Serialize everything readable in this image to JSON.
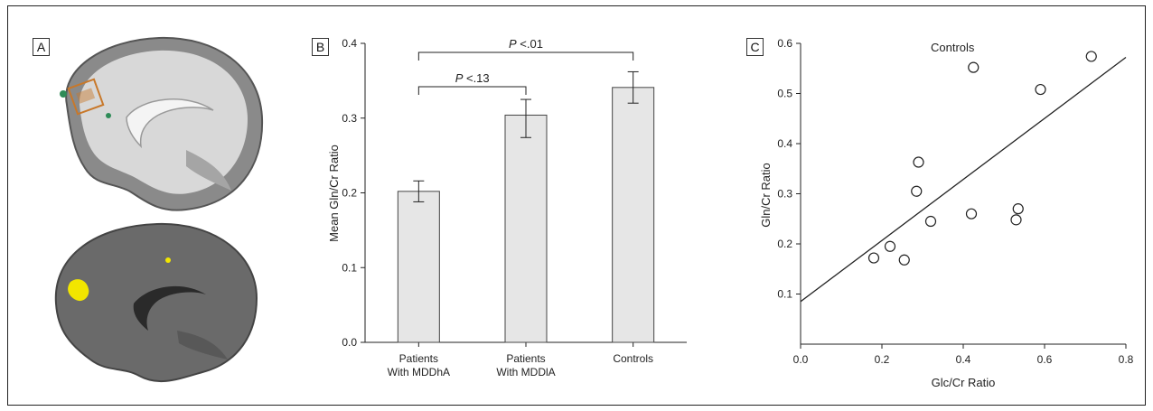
{
  "panels": {
    "a_label": "A",
    "b_label": "B",
    "c_label": "C"
  },
  "colors": {
    "bar_fill": "#e6e6e6",
    "brain_gray": "#6a6a6a",
    "brain_light": "#d8d8d8",
    "roi_orange": "#c8782a",
    "roi_green": "#2e8b57",
    "activation_yellow": "#f2e600"
  },
  "chart_data": [
    {
      "type": "bar",
      "panel": "B",
      "categories": [
        "Patients With MDDhA",
        "Patients With MDDlA",
        "Controls"
      ],
      "category_lines": [
        [
          "Patients",
          "With MDDhA"
        ],
        [
          "Patients",
          "With MDDlA"
        ],
        [
          "Controls"
        ]
      ],
      "values": [
        0.202,
        0.304,
        0.341
      ],
      "errors": [
        {
          "low": 0.188,
          "high": 0.216
        },
        {
          "low": 0.274,
          "high": 0.325
        },
        {
          "low": 0.32,
          "high": 0.362
        }
      ],
      "ylabel": "Mean Gln/Cr Ratio",
      "ylim": [
        0,
        0.4
      ],
      "yticks": [
        "0.0",
        "0.1",
        "0.2",
        "0.3",
        "0.4"
      ],
      "comparisons": [
        {
          "label_p": "P",
          "label_rest": " <.13",
          "from": 0,
          "to": 1
        },
        {
          "label_p": "P",
          "label_rest": " <.01",
          "from": 0,
          "to": 2
        }
      ]
    },
    {
      "type": "scatter",
      "panel": "C",
      "title": "Controls",
      "xlabel": "Glc/Cr Ratio",
      "ylabel": "Gln/Cr Ratio",
      "xlim": [
        0,
        0.8
      ],
      "ylim": [
        0,
        0.6
      ],
      "xticks": [
        "0.0",
        "0.2",
        "0.4",
        "0.6",
        "0.8"
      ],
      "yticks": [
        "0.1",
        "0.2",
        "0.3",
        "0.4",
        "0.5",
        "0.6"
      ],
      "points": [
        {
          "x": 0.18,
          "y": 0.172
        },
        {
          "x": 0.22,
          "y": 0.195
        },
        {
          "x": 0.255,
          "y": 0.168
        },
        {
          "x": 0.285,
          "y": 0.305
        },
        {
          "x": 0.29,
          "y": 0.363
        },
        {
          "x": 0.32,
          "y": 0.245
        },
        {
          "x": 0.42,
          "y": 0.26
        },
        {
          "x": 0.425,
          "y": 0.552
        },
        {
          "x": 0.53,
          "y": 0.248
        },
        {
          "x": 0.535,
          "y": 0.27
        },
        {
          "x": 0.59,
          "y": 0.508
        },
        {
          "x": 0.715,
          "y": 0.574
        }
      ],
      "fit_line": {
        "x": [
          0,
          0.8
        ],
        "y": [
          0.085,
          0.572
        ]
      }
    }
  ]
}
